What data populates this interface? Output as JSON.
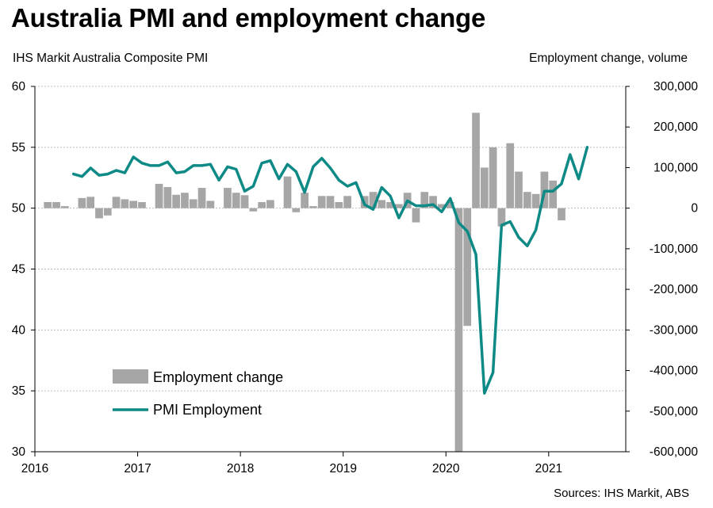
{
  "chart_data": {
    "type": "bar+line",
    "title": "Australia PMI and employment change",
    "left_axis_label": "IHS Markit Australia Composite PMI",
    "right_axis_label": "Employment  change, volume",
    "source": "Sources: IHS Markit, ABS",
    "left_ylim": [
      30,
      60
    ],
    "left_ticks": [
      60,
      55,
      50,
      45,
      40,
      35,
      30
    ],
    "right_ylim": [
      -600000,
      300000
    ],
    "right_ticks": [
      "300,000",
      "200,000",
      "100,000",
      "0",
      "-100,000",
      "-200,000",
      "-300,000",
      "-400,000",
      "-500,000",
      "-600,000"
    ],
    "x_ticks": [
      "2016",
      "2017",
      "2018",
      "2019",
      "2020",
      "2021"
    ],
    "x_range_years": [
      2016,
      2021.75
    ],
    "grid": true,
    "legend": {
      "position": "bottom-left",
      "bar_label": "Employment change",
      "line_label": "PMI Employment"
    },
    "colors": {
      "bars": "#a6a6a6",
      "line": "#0e8a86",
      "grid": "#bfbfbf",
      "axis": "#000000"
    },
    "series": [
      {
        "name": "Employment change",
        "kind": "bar",
        "axis": "right",
        "start": "2016-02",
        "values": [
          15000,
          15000,
          5000,
          0,
          25000,
          28000,
          -25000,
          -18000,
          28000,
          22000,
          18000,
          15000,
          0,
          60000,
          52000,
          33000,
          38000,
          22000,
          50000,
          18000,
          0,
          50000,
          38000,
          32000,
          -8000,
          15000,
          20000,
          0,
          78000,
          -10000,
          38000,
          5000,
          30000,
          30000,
          15000,
          30000,
          0,
          30000,
          40000,
          20000,
          15000,
          10000,
          38000,
          -35000,
          40000,
          30000,
          10000,
          15000,
          -600000,
          -290000,
          235000,
          100000,
          150000,
          -45000,
          160000,
          90000,
          40000,
          35000,
          90000,
          68000,
          -30000
        ]
      },
      {
        "name": "PMI Employment",
        "kind": "line",
        "axis": "left",
        "start": "2016-05",
        "values": [
          52.8,
          52.6,
          53.3,
          52.7,
          52.8,
          53.1,
          52.9,
          54.2,
          53.7,
          53.5,
          53.5,
          53.8,
          52.9,
          53.0,
          53.5,
          53.5,
          53.6,
          52.3,
          53.4,
          53.2,
          51.4,
          51.8,
          53.7,
          53.9,
          52.4,
          53.6,
          53.0,
          51.3,
          53.4,
          54.1,
          53.3,
          52.3,
          51.8,
          52.1,
          50.3,
          49.9,
          51.7,
          51.0,
          49.2,
          50.6,
          50.2,
          50.2,
          50.3,
          49.7,
          50.8,
          48.8,
          48.1,
          46.2,
          34.8,
          36.5,
          48.6,
          48.9,
          47.6,
          46.9,
          48.2,
          51.4,
          51.4,
          52.0,
          54.4,
          52.4,
          55.0
        ]
      }
    ]
  }
}
